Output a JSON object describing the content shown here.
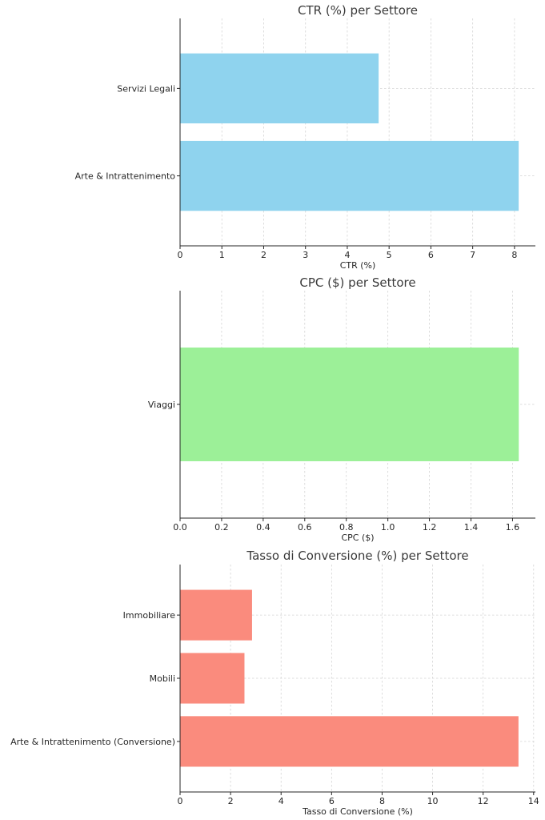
{
  "chart_data": [
    {
      "type": "bar",
      "orientation": "horizontal",
      "title": "CTR (%) per Settore",
      "xlabel": "CTR (%)",
      "ylabel": "",
      "categories": [
        "Arte & Intrattenimento",
        "Servizi Legali"
      ],
      "values": [
        8.1,
        4.75
      ],
      "xlim": [
        0,
        8.5
      ],
      "xticks": [
        0,
        1,
        2,
        3,
        4,
        5,
        6,
        7,
        8
      ],
      "tick_decimals": 0,
      "color": "#8fd3ee",
      "grid": true
    },
    {
      "type": "bar",
      "orientation": "horizontal",
      "title": "CPC ($) per Settore",
      "xlabel": "CPC ($)",
      "ylabel": "",
      "categories": [
        "Viaggi"
      ],
      "values": [
        1.63
      ],
      "xlim": [
        0,
        1.71
      ],
      "xticks": [
        0,
        0.2,
        0.4,
        0.6,
        0.8,
        1.0,
        1.2,
        1.4,
        1.6
      ],
      "tick_decimals": 1,
      "color": "#9cf098",
      "grid": true
    },
    {
      "type": "bar",
      "orientation": "horizontal",
      "title": "Tasso di Conversione (%) per Settore",
      "xlabel": "Tasso di Conversione (%)",
      "ylabel": "",
      "categories": [
        "Arte & Intrattenimento (Conversione)",
        "Mobili",
        "Immobiliare"
      ],
      "values": [
        13.4,
        2.55,
        2.85
      ],
      "xlim": [
        0,
        14.07
      ],
      "xticks": [
        0,
        2,
        4,
        6,
        8,
        10,
        12,
        14
      ],
      "tick_decimals": 0,
      "color": "#fa8b7d",
      "grid": true
    }
  ]
}
